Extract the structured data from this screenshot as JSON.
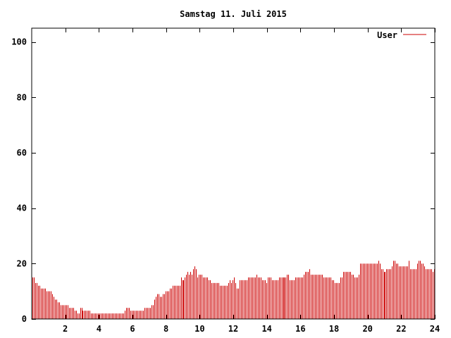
{
  "chart_data": {
    "type": "bar",
    "title": "Samstag 11. Juli 2015",
    "xlabel": "",
    "ylabel": "",
    "xlim": [
      0,
      24
    ],
    "ylim": [
      0,
      105
    ],
    "x_ticks": [
      2,
      4,
      6,
      8,
      10,
      12,
      14,
      16,
      18,
      20,
      22,
      24
    ],
    "y_ticks": [
      0,
      20,
      40,
      60,
      80,
      100
    ],
    "grid": false,
    "legend_position": "top-right",
    "series": [
      {
        "name": "User",
        "color": "#cc0000",
        "values": [
          15,
          15,
          13,
          13,
          12,
          12,
          11,
          11,
          11,
          11,
          10,
          10,
          10,
          10,
          9,
          8,
          7,
          7,
          6,
          6,
          5,
          5,
          5,
          5,
          5,
          5,
          4,
          4,
          4,
          4,
          3,
          3,
          2,
          2,
          4,
          4,
          3,
          3,
          3,
          3,
          3,
          3,
          2,
          2,
          2,
          2,
          2,
          2,
          2,
          2,
          2,
          2,
          2,
          2,
          2,
          2,
          2,
          2,
          2,
          2,
          2,
          2,
          2,
          2,
          2,
          2,
          3,
          4,
          4,
          4,
          3,
          3,
          3,
          3,
          3,
          3,
          3,
          3,
          3,
          3,
          4,
          4,
          4,
          4,
          4,
          5,
          5,
          7,
          8,
          9,
          9,
          8,
          8,
          9,
          9,
          10,
          10,
          10,
          11,
          11,
          12,
          12,
          12,
          12,
          12,
          12,
          15,
          14,
          14,
          15,
          16,
          17,
          16,
          17,
          16,
          18,
          19,
          18,
          15,
          16,
          16,
          16,
          15,
          15,
          15,
          15,
          14,
          14,
          13,
          13,
          13,
          13,
          13,
          13,
          12,
          12,
          12,
          12,
          12,
          12,
          13,
          14,
          13,
          14,
          15,
          13,
          11,
          11,
          14,
          14,
          14,
          14,
          14,
          14,
          15,
          15,
          15,
          15,
          15,
          15,
          16,
          15,
          15,
          15,
          14,
          14,
          14,
          13,
          15,
          15,
          15,
          14,
          14,
          14,
          14,
          14,
          15,
          15,
          15,
          15,
          15,
          15,
          16,
          16,
          14,
          14,
          14,
          14,
          15,
          15,
          15,
          15,
          15,
          15,
          16,
          17,
          17,
          17,
          18,
          16,
          16,
          16,
          16,
          16,
          16,
          16,
          16,
          16,
          15,
          15,
          15,
          15,
          15,
          15,
          14,
          14,
          13,
          13,
          13,
          13,
          15,
          15,
          17,
          17,
          17,
          17,
          17,
          17,
          16,
          16,
          15,
          15,
          15,
          16,
          20,
          20,
          20,
          20,
          20,
          20,
          20,
          20,
          20,
          20,
          20,
          20,
          20,
          21,
          20,
          18,
          18,
          17,
          17,
          18,
          18,
          18,
          18,
          19,
          21,
          21,
          20,
          20,
          19,
          19,
          19,
          19,
          19,
          19,
          19,
          21,
          18,
          18,
          18,
          18,
          18,
          20,
          21,
          21,
          20,
          20,
          19,
          18,
          18,
          18,
          18,
          18,
          17,
          18
        ]
      }
    ]
  }
}
